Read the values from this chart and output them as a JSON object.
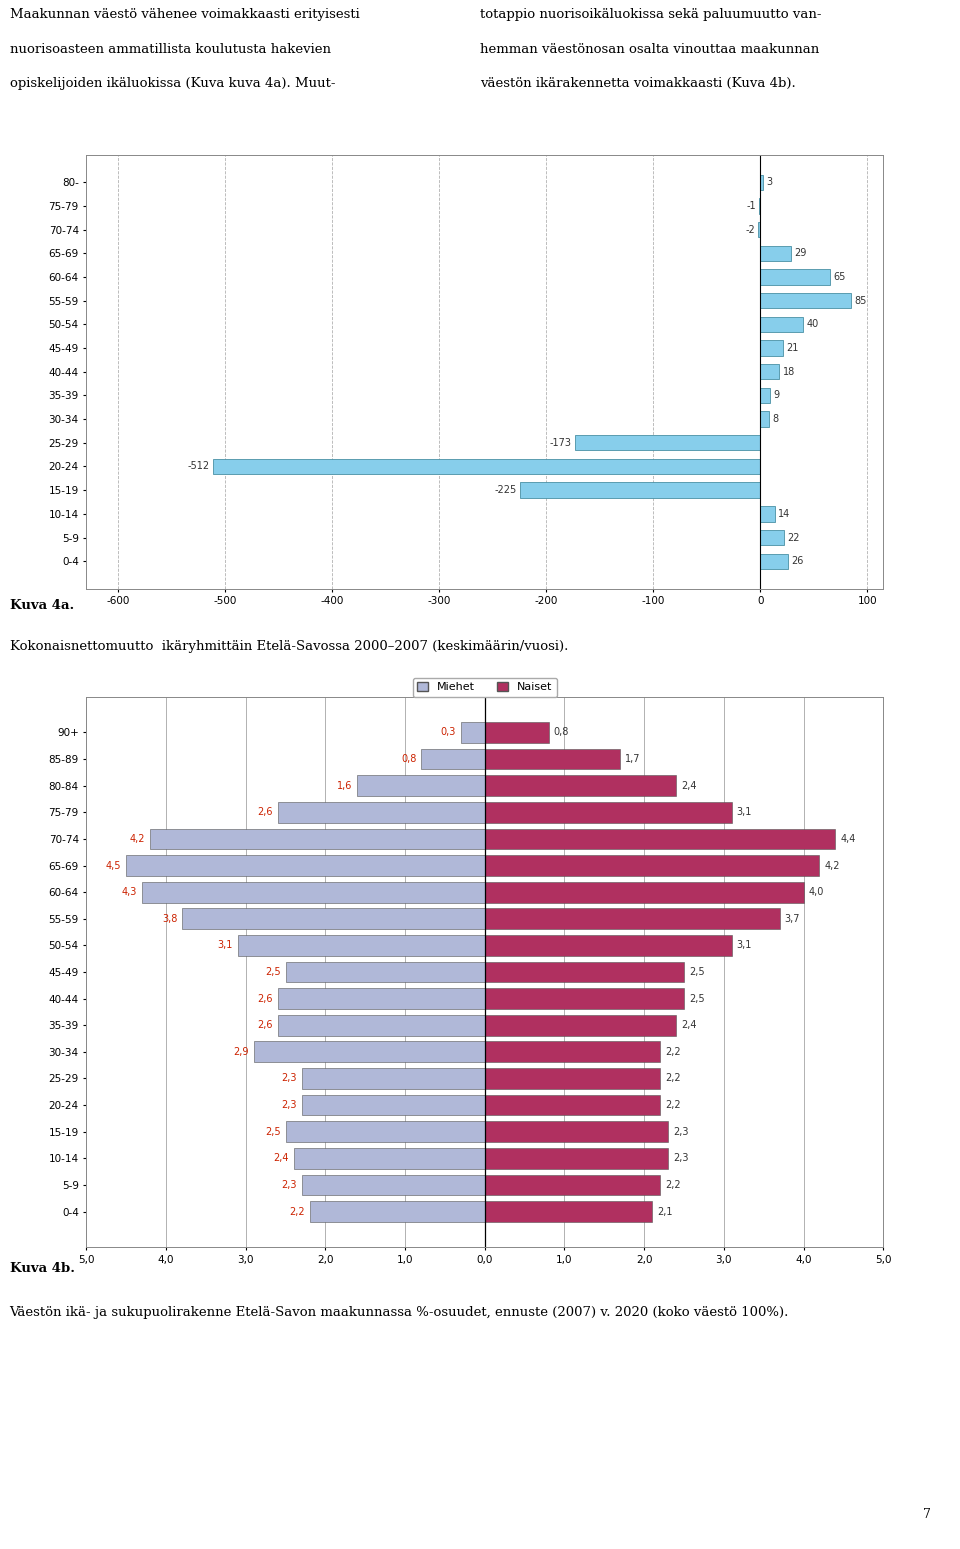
{
  "chart1": {
    "age_groups": [
      "0-4",
      "5-9",
      "10-14",
      "15-19",
      "20-24",
      "25-29",
      "30-34",
      "35-39",
      "40-44",
      "45-49",
      "50-54",
      "55-59",
      "60-64",
      "65-69",
      "70-74",
      "75-79",
      "80-"
    ],
    "values": [
      26,
      22,
      14,
      -225,
      -512,
      -173,
      8,
      9,
      18,
      21,
      40,
      85,
      65,
      29,
      -2,
      -1,
      3
    ],
    "bar_color": "#87ceeb",
    "bar_edge_color": "#4a90a4",
    "xlim": [
      -630,
      115
    ],
    "xticks": [
      -600,
      -500,
      -400,
      -300,
      -200,
      -100,
      0,
      100
    ],
    "grid_color": "#aaaaaa"
  },
  "chart2": {
    "age_groups": [
      "0-4",
      "5-9",
      "10-14",
      "15-19",
      "20-24",
      "25-29",
      "30-34",
      "35-39",
      "40-44",
      "45-49",
      "50-54",
      "55-59",
      "60-64",
      "65-69",
      "70-74",
      "75-79",
      "80-84",
      "85-89",
      "90+"
    ],
    "men_values": [
      2.2,
      2.3,
      2.4,
      2.5,
      2.3,
      2.3,
      2.9,
      2.6,
      2.6,
      2.5,
      3.1,
      3.8,
      4.3,
      4.5,
      4.2,
      2.6,
      1.6,
      0.8,
      0.3
    ],
    "women_values": [
      2.1,
      2.2,
      2.3,
      2.3,
      2.2,
      2.2,
      2.2,
      2.4,
      2.5,
      2.5,
      3.1,
      3.7,
      4.0,
      4.2,
      4.4,
      3.1,
      2.4,
      1.7,
      0.8
    ],
    "men_color": "#b0b8d8",
    "women_color": "#b03060",
    "men_label": "Miehet",
    "women_label": "Naiset",
    "xtick_labels": [
      "5,0",
      "4,0",
      "3,0",
      "2,0",
      "1,0",
      "0,0",
      "1,0",
      "2,0",
      "3,0",
      "4,0",
      "5,0"
    ],
    "men_label_color": "#cc2200",
    "women_label_color": "#333333"
  },
  "col1_lines": [
    "Maakunnan väestö vähenee voimakkaasti erityisesti",
    "nuorisoasteen ammatillista koulutusta hakevien",
    "opiskelijoiden ikäluokissa (Kuva kuva 4a). Muut-"
  ],
  "col2_lines": [
    "totappio nuorisoikäluokissa sekä paluumuutto van-",
    "hemman väestönosan osalta vinouttaa maakunnan",
    "väestön ikärakennetta voimakkaasti (Kuva 4b)."
  ],
  "caption1_bold": "Kuva 4a.",
  "caption1_normal": "Kokonaisnettomuutto  ikäryhmittäin Etelä-Savossa 2000–2007 (keskimäärin/vuosi).",
  "caption2_bold": "Kuva 4b.",
  "caption2_normal": "Väestön ikä- ja sukupuolirakenne Etelä-Savon maakunnassa %-osuudet, ennuste (2007) v. 2020 (koko väestö 100%).",
  "page_number": "7",
  "background_color": "#ffffff"
}
